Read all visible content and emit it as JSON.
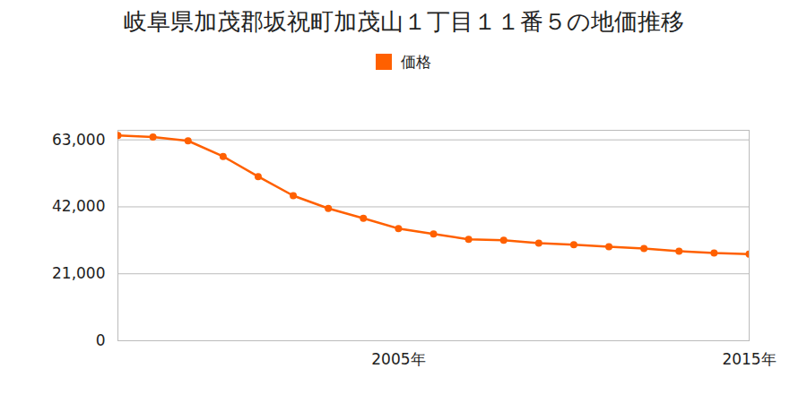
{
  "chart_data": {
    "type": "line",
    "title": "岐阜県加茂郡坂祝町加茂山１丁目１１番５の地価推移",
    "x": [
      1997,
      1998,
      1999,
      2000,
      2001,
      2002,
      2003,
      2004,
      2005,
      2006,
      2007,
      2008,
      2009,
      2010,
      2011,
      2012,
      2013,
      2014,
      2015
    ],
    "series": [
      {
        "name": "価格",
        "color": "#ff6000",
        "marker": "circle",
        "values": [
          64400,
          63900,
          62700,
          57800,
          51500,
          45500,
          41500,
          38400,
          35200,
          33500,
          31800,
          31500,
          30600,
          30100,
          29500,
          28900,
          28100,
          27500,
          27200
        ]
      }
    ],
    "xlim": [
      1997,
      2015
    ],
    "xticks": [
      {
        "value": 2005,
        "label": "2005年"
      },
      {
        "value": 2015,
        "label": "2015年"
      }
    ],
    "ylim": [
      0,
      66000
    ],
    "yticks": [
      0,
      {
        "value": 21000,
        "label": "21,000"
      },
      {
        "value": 42000,
        "label": "42,000"
      },
      {
        "value": 63000,
        "label": "63,000"
      }
    ],
    "grid": true,
    "legend": "top"
  }
}
